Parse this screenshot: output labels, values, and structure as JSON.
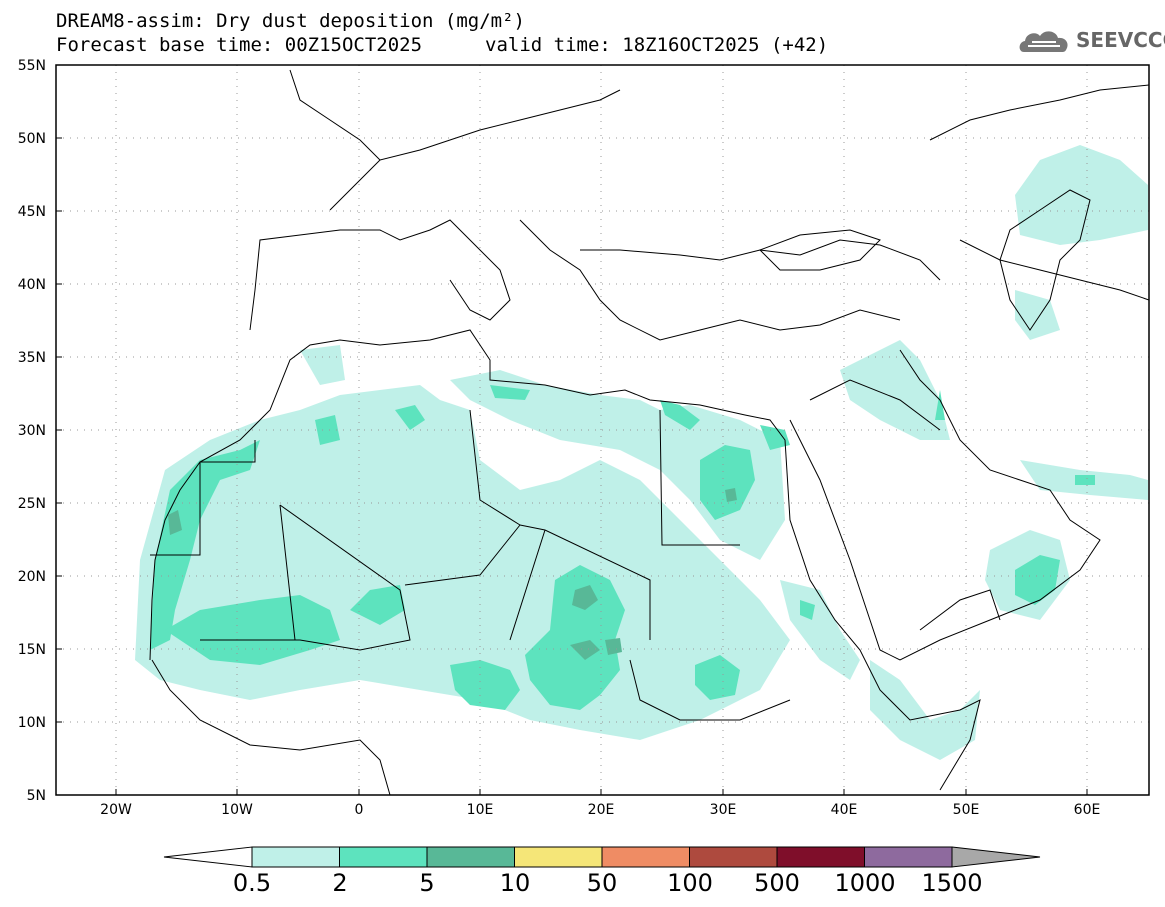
{
  "header": {
    "title": "DREAM8-assim: Dry dust deposition (mg/m²)",
    "base_time": "Forecast base time: 00Z15OCT2025",
    "valid_time": "valid time: 18Z16OCT2025 (+42)"
  },
  "logo": {
    "text": "SEEVCCC",
    "icon": "cloud-icon"
  },
  "map": {
    "lat_labels": [
      "55N",
      "50N",
      "45N",
      "40N",
      "35N",
      "30N",
      "25N",
      "20N",
      "15N",
      "10N",
      "5N"
    ],
    "lon_labels": [
      "20W",
      "10W",
      "0",
      "10E",
      "20E",
      "30E",
      "40E",
      "50E",
      "60E"
    ],
    "lat_range": [
      5,
      55
    ],
    "lon_range": [
      -25,
      65
    ]
  },
  "legend": {
    "labels": [
      "0.5",
      "2",
      "5",
      "10",
      "50",
      "100",
      "500",
      "1000",
      "1500"
    ],
    "colors": [
      "#ffffff",
      "#bff0e8",
      "#5de3be",
      "#58b897",
      "#f5e678",
      "#ef8c64",
      "#ae4a3e",
      "#7f0e2a",
      "#8e6a9e",
      "#a8a8a8"
    ]
  }
}
